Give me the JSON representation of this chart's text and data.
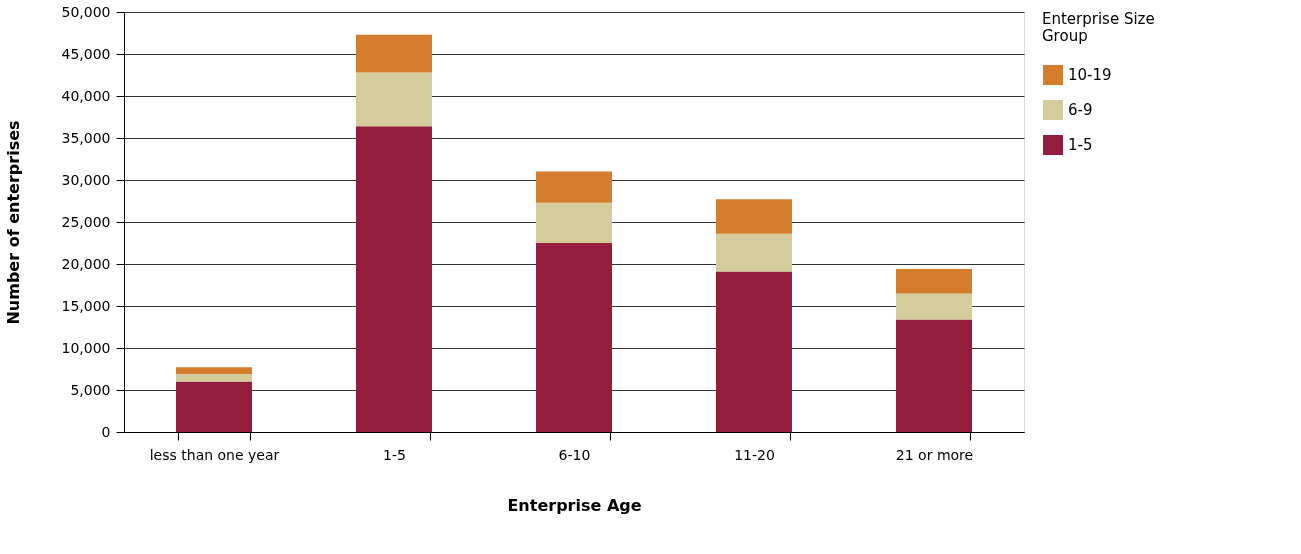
{
  "chart_data": {
    "type": "bar",
    "stacked": true,
    "xlabel": "Enterprise Age",
    "ylabel": "Number of enterprises",
    "legend_title": "Enterprise Size Group",
    "legend": "top right",
    "categories": [
      "less than one year",
      "1-5",
      "6-10",
      "11-20",
      "21 or more"
    ],
    "series": [
      {
        "name": "1-5",
        "color": "#941c3c",
        "values": [
          6000,
          36400,
          22500,
          19100,
          13400
        ]
      },
      {
        "name": "6-9",
        "color": "#d4cc9a",
        "values": [
          900,
          6400,
          4800,
          4500,
          3100
        ]
      },
      {
        "name": "10-19",
        "color": "#d47d2c",
        "values": [
          800,
          4500,
          3700,
          4100,
          2900
        ]
      }
    ],
    "ylim": [
      0,
      50000
    ],
    "yticks": [
      {
        "value": 0,
        "label": "0"
      },
      {
        "value": 5000,
        "label": "5,000"
      },
      {
        "value": 10000,
        "label": "10,000"
      },
      {
        "value": 15000,
        "label": "15,000"
      },
      {
        "value": 20000,
        "label": "20,000"
      },
      {
        "value": 25000,
        "label": "25,000"
      },
      {
        "value": 30000,
        "label": "30,000"
      },
      {
        "value": 35000,
        "label": "35,000"
      },
      {
        "value": 40000,
        "label": "40,000"
      },
      {
        "value": 45000,
        "label": "45,000"
      },
      {
        "value": 50000,
        "label": "50,000"
      }
    ],
    "grid": "y"
  }
}
